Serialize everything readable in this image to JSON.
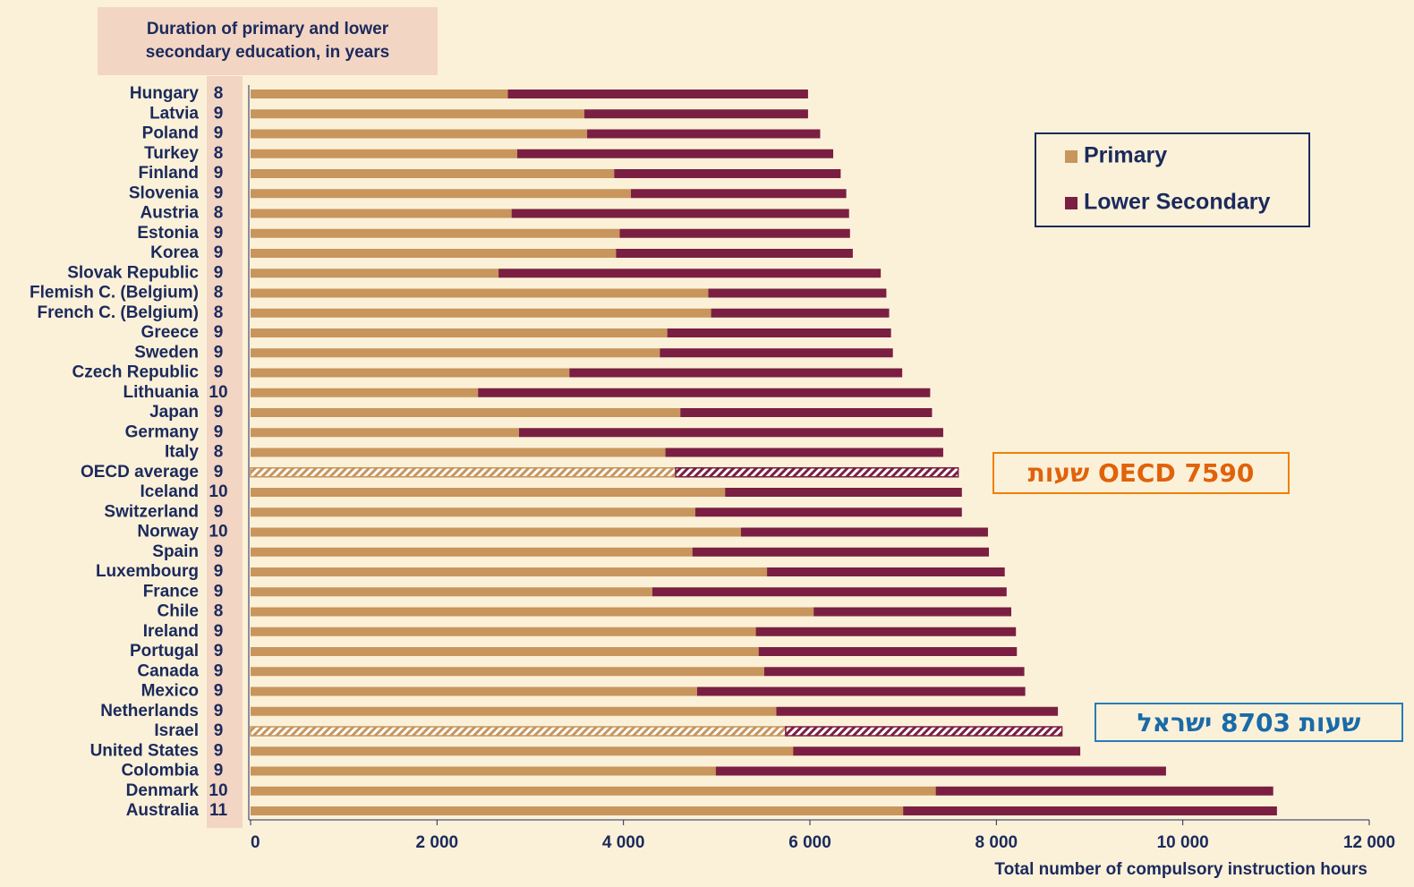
{
  "chart_data": {
    "type": "stacked-barh",
    "header": "Duration of primary and lower secondary education, in years",
    "xlabel": "Total number of compulsory instruction hours",
    "categories": [
      "Hungary",
      "Latvia",
      "Poland",
      "Turkey",
      "Finland",
      "Slovenia",
      "Austria",
      "Estonia",
      "Korea",
      "Slovak Republic",
      "Flemish C. (Belgium)",
      "French C. (Belgium)",
      "Greece",
      "Sweden",
      "Czech Republic",
      "Lithuania",
      "Japan",
      "Germany",
      "Italy",
      "OECD average",
      "Iceland",
      "Switzerland",
      "Norway",
      "Spain",
      "Luxembourg",
      "France",
      "Chile",
      "Ireland",
      "Portugal",
      "Canada",
      "Mexico",
      "Netherlands",
      "Israel",
      "United States",
      "Colombia",
      "Denmark",
      "Australia"
    ],
    "years": [
      8,
      9,
      9,
      8,
      9,
      9,
      8,
      9,
      9,
      9,
      8,
      8,
      9,
      9,
      9,
      10,
      9,
      9,
      8,
      9,
      10,
      9,
      10,
      9,
      9,
      9,
      8,
      9,
      9,
      9,
      9,
      9,
      9,
      9,
      9,
      10,
      11
    ],
    "series": [
      {
        "name": "Primary",
        "color": "#c8955c",
        "values": [
          2760,
          3580,
          3610,
          2860,
          3900,
          4080,
          2800,
          3960,
          3920,
          2660,
          4910,
          4940,
          4470,
          4390,
          3420,
          2440,
          4610,
          2880,
          4450,
          4560,
          5090,
          4770,
          5260,
          4740,
          5540,
          4310,
          6040,
          5420,
          5450,
          5510,
          4790,
          5640,
          5740,
          5820,
          4990,
          7350,
          7000
        ]
      },
      {
        "name": "Lower Secondary",
        "color": "#7b1f42",
        "values": [
          3220,
          2400,
          2500,
          3390,
          2430,
          2310,
          3620,
          2470,
          2540,
          4100,
          1910,
          1910,
          2400,
          2500,
          3570,
          4850,
          2700,
          4550,
          2980,
          3030,
          2540,
          2860,
          2650,
          3180,
          2550,
          3800,
          2120,
          2790,
          2770,
          2790,
          3520,
          3020,
          2963,
          3080,
          4830,
          3620,
          4010
        ]
      }
    ],
    "hatched_categories": [
      19,
      32
    ],
    "xlim": [
      0,
      12000
    ],
    "xticks": [
      0,
      {
        "value": 2000,
        "label": "2 000"
      },
      {
        "value": 4000,
        "label": "4 000"
      },
      {
        "value": 6000,
        "label": "6 000"
      },
      {
        "value": 8000,
        "label": "8 000"
      },
      {
        "value": 10000,
        "label": "10 000"
      },
      {
        "value": 12000,
        "label": "12 000"
      }
    ],
    "annotations": [
      {
        "text": "OECD 7590 שעות",
        "color": "#e0620b",
        "border": "#f07f09"
      },
      {
        "text": "שעות 8703 ישראל",
        "color": "#1a6aa8",
        "border": "#2a7ab8"
      }
    ],
    "legend": "upper right"
  }
}
